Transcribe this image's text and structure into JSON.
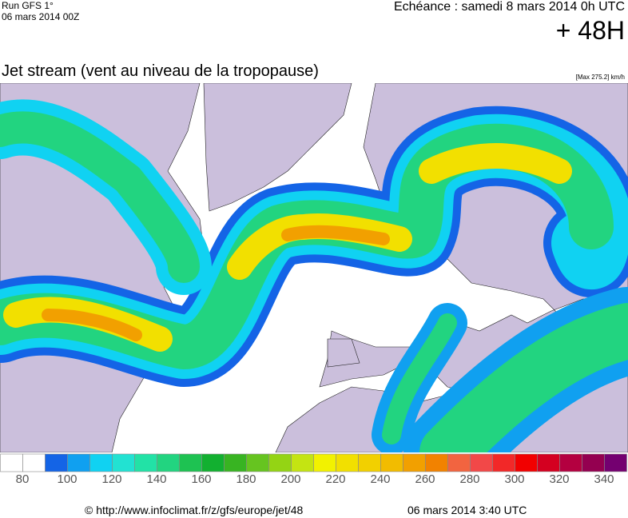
{
  "header": {
    "run": "Run GFS 1°",
    "date": "06 mars 2014 00Z",
    "valid": "Echéance : samedi 8 mars 2014 0h UTC",
    "lead": "+ 48H",
    "title": "Jet stream (vent au niveau de la tropopause)",
    "max": "[Max 275.2] km/h"
  },
  "legend": {
    "colors": [
      "#ffffff",
      "#ffffff",
      "#1464e6",
      "#10a0f0",
      "#10d2f2",
      "#22e2d2",
      "#22e2a6",
      "#22d480",
      "#1ec252",
      "#12b030",
      "#38b422",
      "#66c420",
      "#94d414",
      "#c4e412",
      "#f2f200",
      "#f2e000",
      "#f2d000",
      "#f2bc00",
      "#f2a000",
      "#f28200",
      "#f26440",
      "#f24848",
      "#f22828",
      "#f20000",
      "#d40020",
      "#b40040",
      "#940050",
      "#740070"
    ],
    "ticks": [
      80,
      100,
      120,
      140,
      160,
      180,
      200,
      220,
      240,
      260,
      280,
      300,
      320,
      340
    ]
  },
  "footer": {
    "url": "© http://www.infoclimat.fr/z/gfs/europe/jet/48",
    "time": "06 mars 2014  3:40 UTC"
  }
}
